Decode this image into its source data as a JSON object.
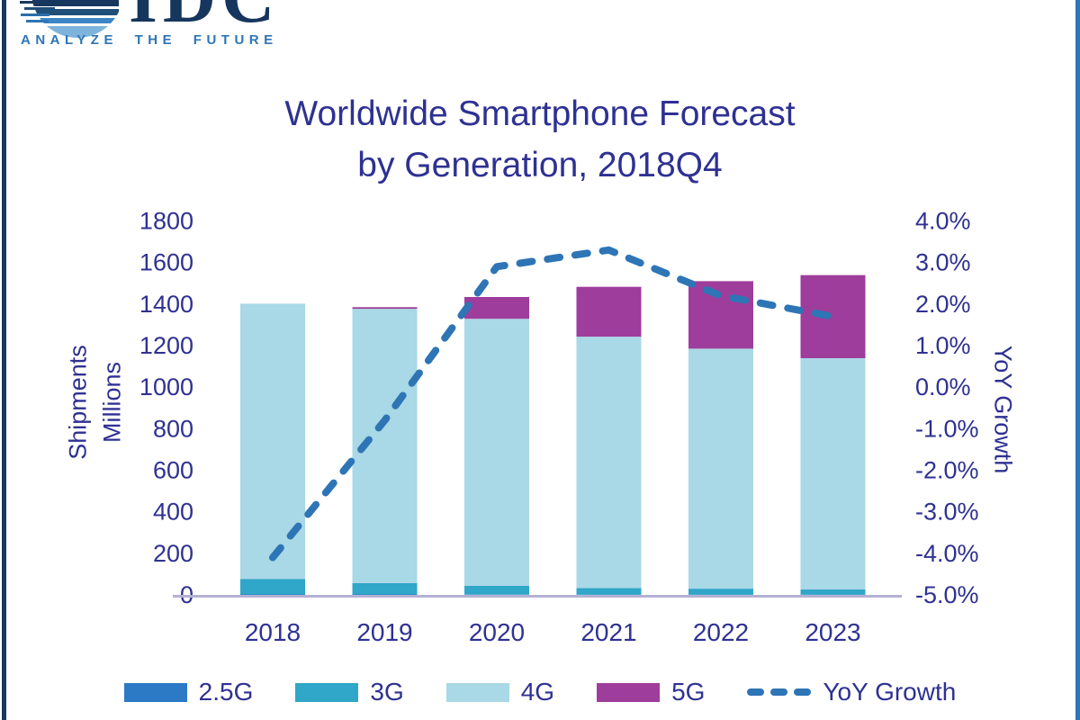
{
  "page": {
    "left_border_color": "#17375E",
    "right_border_color": "#2E75B6",
    "background": "#FFFFFF"
  },
  "logo": {
    "name": "IDC",
    "tagline": "ANALYZE THE FUTURE",
    "name_color": "#17365D",
    "tagline_color": "#2E75B6"
  },
  "title": {
    "line1": "Worldwide Smartphone Forecast",
    "line2": "by Generation, 2018Q4",
    "color": "#2E3192"
  },
  "chart_data": {
    "type": "bar",
    "subtype": "stacked-bars-with-line",
    "grid": false,
    "legend_position": "bottom",
    "categories": [
      "2018",
      "2019",
      "2020",
      "2021",
      "2022",
      "2023"
    ],
    "series": [
      {
        "name": "2.5G",
        "type": "bar",
        "color": "#2C79C5",
        "values": [
          2,
          2,
          1,
          1,
          1,
          1
        ]
      },
      {
        "name": "3G",
        "type": "bar",
        "color": "#30A6C8",
        "values": [
          75,
          55,
          43,
          32,
          29,
          26
        ]
      },
      {
        "name": "4G",
        "type": "bar",
        "color": "#A9D8E6",
        "values": [
          1325,
          1320,
          1285,
          1210,
          1155,
          1112
        ]
      },
      {
        "name": "5G",
        "type": "bar",
        "color": "#9E3D9B",
        "values": [
          0,
          8,
          105,
          240,
          325,
          400
        ]
      },
      {
        "name": "YoY Growth",
        "type": "line",
        "color": "#2E75B6",
        "values": [
          -4.1,
          -0.8,
          2.9,
          3.3,
          2.2,
          1.7
        ]
      }
    ],
    "totals": [
      1402,
      1385,
      1434,
      1483,
      1510,
      1539
    ],
    "left_axis": {
      "title_line1": "Shipments",
      "title_line2": "Millions",
      "min": 0,
      "max": 1800,
      "step": 200,
      "ticks": [
        "1800",
        "1600",
        "1400",
        "1200",
        "1000",
        "800",
        "600",
        "400",
        "200",
        "0"
      ]
    },
    "right_axis": {
      "title": "YoY Growth",
      "min": -5,
      "max": 4,
      "step": 1,
      "ticks": [
        "4.0%",
        "3.0%",
        "2.0%",
        "1.0%",
        "0.0%",
        "-1.0%",
        "-2.0%",
        "-3.0%",
        "-4.0%",
        "-5.0%"
      ]
    }
  },
  "legend": {
    "items": [
      {
        "label": "2.5G",
        "color": "#2C79C5",
        "type": "swatch"
      },
      {
        "label": "3G",
        "color": "#30A6C8",
        "type": "swatch"
      },
      {
        "label": "4G",
        "color": "#A9D8E6",
        "type": "swatch"
      },
      {
        "label": "5G",
        "color": "#9E3D9B",
        "type": "swatch"
      },
      {
        "label": "YoY Growth",
        "color": "#2E75B6",
        "type": "dashed-line"
      }
    ]
  },
  "colors": {
    "axis_text": "#2E3192",
    "baseline": "#B5B1D5"
  }
}
